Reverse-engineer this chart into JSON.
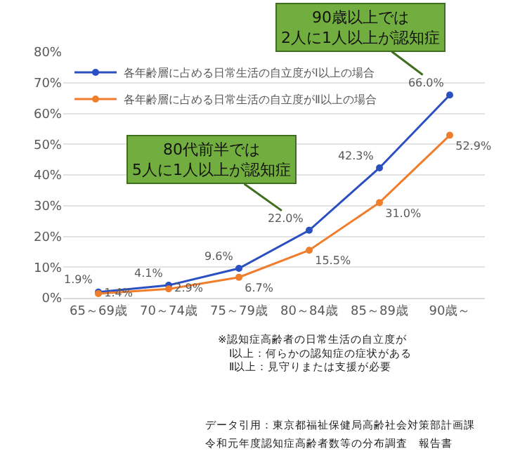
{
  "chart_data": {
    "type": "line",
    "categories": [
      "65～69歳",
      "70～74歳",
      "75～79歳",
      "80～84歳",
      "85～89歳",
      "90歳～"
    ],
    "series": [
      {
        "name": "各年齢層に占める日常生活の自立度がⅠ以上の場合",
        "color": "#2a4fc0",
        "values": [
          1.9,
          4.1,
          9.6,
          22.0,
          42.3,
          66.0
        ],
        "value_labels": [
          "1.9%",
          "4.1%",
          "9.6%",
          "22.0%",
          "42.3%",
          "66.0%"
        ]
      },
      {
        "name": "各年齢層に占める日常生活の自立度がⅡ以上の場合",
        "color": "#f07d2c",
        "values": [
          1.4,
          2.9,
          6.7,
          15.5,
          31.0,
          52.9
        ],
        "value_labels": [
          "1.4%",
          "2.9%",
          "6.7%",
          "15.5%",
          "31.0%",
          "52.9%"
        ]
      }
    ],
    "ylim": [
      0,
      80
    ],
    "yticks": [
      {
        "value": 0,
        "label": "0%"
      },
      {
        "value": 10,
        "label": "10%"
      },
      {
        "value": 20,
        "label": "20%"
      },
      {
        "value": 30,
        "label": "30%"
      },
      {
        "value": 40,
        "label": "40%"
      },
      {
        "value": 50,
        "label": "50%"
      },
      {
        "value": 60,
        "label": "60%"
      },
      {
        "value": 70,
        "label": "70%"
      },
      {
        "value": 80,
        "label": "80%"
      }
    ],
    "grid": "y",
    "legend": "top left",
    "marker": "circle",
    "line_style": "solid",
    "annotations": [
      {
        "text": "90歳以上では\n2人に1人以上が認知症",
        "x": "90歳～",
        "y": 66.0
      },
      {
        "text": "80代前半では\n5人に1人以上が認知症",
        "x": "80～84歳",
        "y": 22.0
      },
      "※認知症高齢者の日常生活の自立度が\n　Ⅰ以上：何らかの認知症の症状がある\n　Ⅱ以上：見守りまたは支援が必要",
      "データ引用：東京都福祉保健局高齢社会対策部計画課",
      "令和元年度認知症高齢者数等の分布調査　報告書"
    ]
  }
}
